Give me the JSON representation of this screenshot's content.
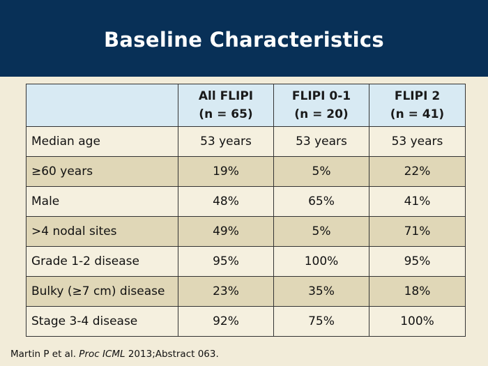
{
  "title": "Baseline Characteristics",
  "table": {
    "headers": [
      {
        "line1": "",
        "line2": ""
      },
      {
        "line1": "All FLIPI",
        "line2": "(n = 65)"
      },
      {
        "line1": "FLIPI 0-1",
        "line2": "(n = 20)"
      },
      {
        "line1": "FLIPI 2",
        "line2": "(n = 41)"
      }
    ],
    "rows": [
      {
        "label": "Median age",
        "values": [
          "53 years",
          "53 years",
          "53 years"
        ]
      },
      {
        "label": "≥60 years",
        "values": [
          "19%",
          "5%",
          "22%"
        ]
      },
      {
        "label": "Male",
        "values": [
          "48%",
          "65%",
          "41%"
        ]
      },
      {
        "label": ">4 nodal sites",
        "values": [
          "49%",
          "5%",
          "71%"
        ]
      },
      {
        "label": "Grade 1-2 disease",
        "values": [
          "95%",
          "100%",
          "95%"
        ]
      },
      {
        "label": "Bulky (≥7 cm) disease",
        "values": [
          "23%",
          "35%",
          "18%"
        ]
      },
      {
        "label": "Stage 3-4 disease",
        "values": [
          "92%",
          "75%",
          "100%"
        ]
      }
    ]
  },
  "citation": {
    "prefix": "Martin P et al. ",
    "journal": "Proc ICML",
    "suffix": " 2013;Abstract 063."
  },
  "colors": {
    "header_bg": "#083057",
    "page_bg": "#f2ecd9",
    "table_header_bg": "#d8eaf3",
    "row_light": "#f5f0df",
    "row_dark": "#e0d7b7"
  }
}
